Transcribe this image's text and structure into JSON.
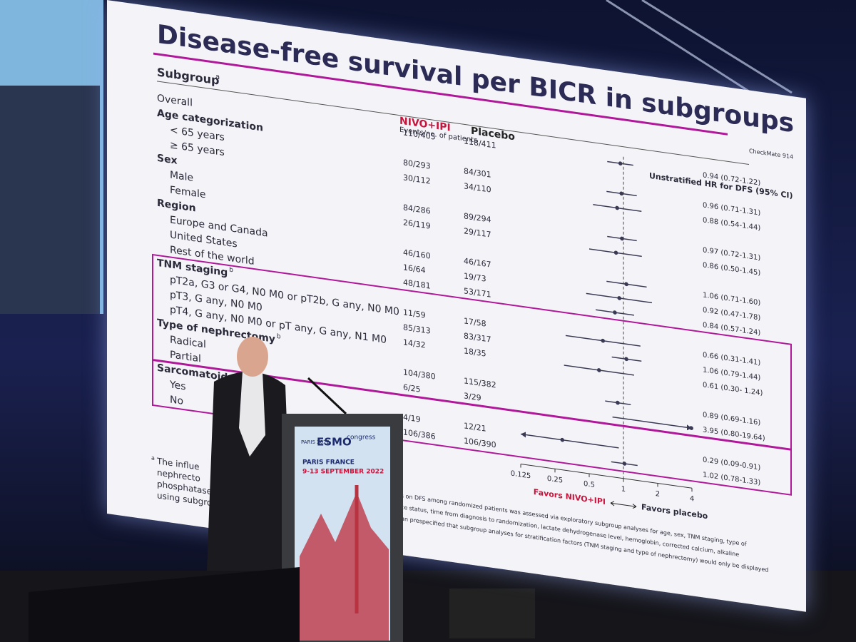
{
  "chart_data": {
    "type": "forest",
    "title": "Disease-free survival per BICR in subgroups",
    "study_label": "CheckMate 914",
    "subgroup_header": "Subgroup",
    "subgroup_note": "a",
    "group_labels": [
      "NIVO+IPI",
      "Placebo"
    ],
    "group_colors": [
      "#c8143c",
      "#222222"
    ],
    "events_header": "Events/no. of patients",
    "hr_header": "Unstratified HR for DFS (95% CI)",
    "categories": [
      "Overall",
      "Age categorization",
      "< 65 years",
      "≥ 65 years",
      "Sex",
      "Male",
      "Female",
      "Region",
      "Europe and Canada",
      "United States",
      "Rest of the world",
      "TNM staging",
      "pT2a, G3 or G4, N0 M0 or pT2b, G any, N0 M0",
      "pT3, G any, N0 M0",
      "pT4, G any, N0 M0 or pT any, G any, N1 M0",
      "Type of nephrectomy",
      "Radical",
      "Partial",
      "Sarcomatoid features",
      "Yes",
      "No"
    ],
    "row_notes": [
      null,
      null,
      null,
      null,
      null,
      null,
      null,
      null,
      null,
      null,
      null,
      "b",
      null,
      null,
      null,
      "b",
      null,
      null,
      null,
      null,
      null
    ],
    "events_a": [
      "110/405",
      null,
      "80/293",
      "30/112",
      null,
      "84/286",
      "26/119",
      null,
      "46/160",
      "16/64",
      "48/181",
      null,
      "11/59",
      "85/313",
      "14/32",
      null,
      "104/380",
      "6/25",
      null,
      "4/19",
      "106/386"
    ],
    "events_b": [
      "118/411",
      null,
      "84/301",
      "34/110",
      null,
      "89/294",
      "29/117",
      null,
      "46/167",
      "19/73",
      "53/171",
      null,
      "17/58",
      "83/317",
      "18/35",
      null,
      "115/382",
      "3/29",
      null,
      "12/21",
      "106/390"
    ],
    "values": [
      0.94,
      null,
      0.96,
      0.88,
      null,
      0.97,
      0.86,
      null,
      1.06,
      0.92,
      0.84,
      null,
      0.66,
      1.06,
      0.61,
      null,
      0.89,
      3.95,
      null,
      0.29,
      1.02
    ],
    "ci_low": [
      0.72,
      null,
      0.71,
      0.54,
      null,
      0.72,
      0.5,
      null,
      0.71,
      0.47,
      0.57,
      null,
      0.31,
      0.79,
      0.3,
      null,
      0.69,
      0.8,
      null,
      0.09,
      0.78
    ],
    "ci_high": [
      1.22,
      null,
      1.31,
      1.44,
      null,
      1.31,
      1.45,
      null,
      1.6,
      1.78,
      1.24,
      null,
      1.41,
      1.44,
      1.24,
      null,
      1.16,
      19.64,
      null,
      0.91,
      1.33
    ],
    "value_labels": [
      "0.94 (0.72-1.22)",
      null,
      "0.96 (0.71-1.31)",
      "0.88 (0.54-1.44)",
      null,
      "0.97 (0.72-1.31)",
      "0.86 (0.50-1.45)",
      null,
      "1.06 (0.71-1.60)",
      "0.92 (0.47-1.78)",
      "0.84 (0.57-1.24)",
      null,
      "0.66 (0.31-1.41)",
      "1.06 (0.79-1.44)",
      "0.61 (0.30- 1.24)",
      null,
      "0.89 (0.69-1.16)",
      "3.95 (0.80-19.64)",
      null,
      "0.29 (0.09-0.91)",
      "1.02 (0.78-1.33)"
    ],
    "xlim": [
      0.125,
      4
    ],
    "xticks": [
      0.125,
      0.25,
      0.5,
      1,
      2,
      4
    ],
    "log_x": true,
    "reference_line": 1,
    "x_label_left": "Favors NIVO+IPI",
    "x_label_right": "Favors placebo",
    "color": "#3a3a55"
  },
  "footnote": {
    "note": "a",
    "left": [
      "The influe",
      "nephrecto",
      "phosphatase",
      "using subgro"
    ],
    "right": [
      "cteristics on DFS among randomized patients was assessed via exploratory subgroup analyses for age, sex, TNM staging, type of",
      "rformance status, time from diagnosis to randomization, lactate dehydrogenase level, hemoglobin, corrected calcium, alkaline",
      "alysis plan prespecified that subgroup analyses for stratification factors (TNM staging and type of nephrectomy) would only be displayed"
    ]
  },
  "podium": {
    "city_year": "PARIS 2022",
    "brand": "ESMO",
    "brand_suffix": "congress",
    "place": "PARIS FRANCE",
    "dates": "9-13 SEPTEMBER 2022"
  }
}
